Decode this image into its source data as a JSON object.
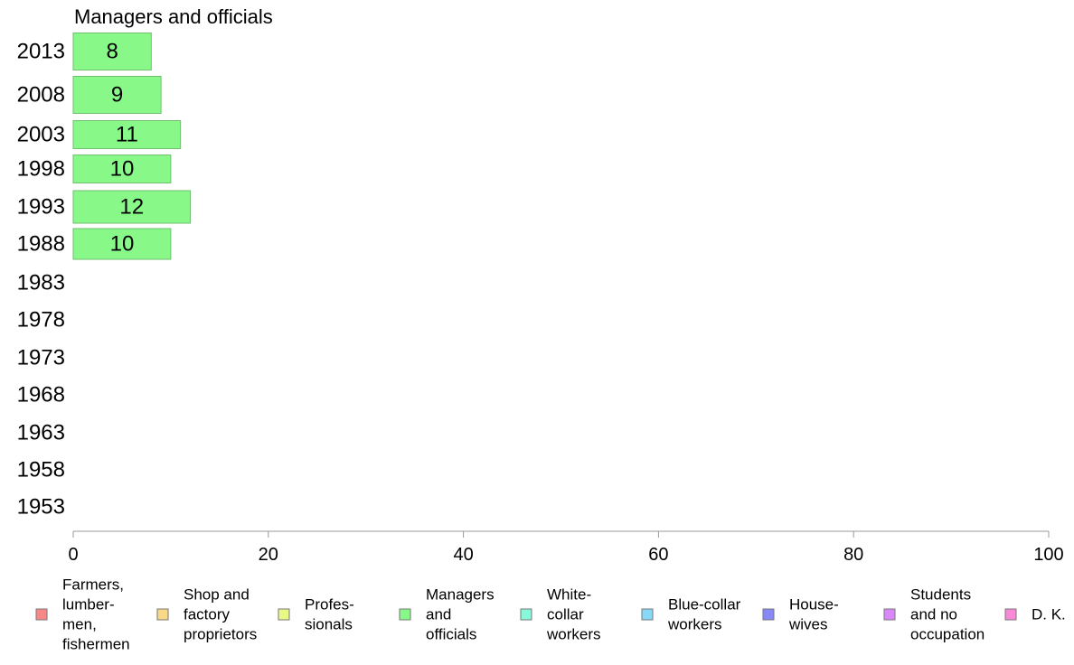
{
  "chart_data": {
    "type": "bar",
    "orientation": "horizontal",
    "title": "Managers and officials",
    "categories": [
      "2013",
      "2008",
      "2003",
      "1998",
      "1993",
      "1988",
      "1983",
      "1978",
      "1973",
      "1968",
      "1963",
      "1958",
      "1953"
    ],
    "series": [
      {
        "name": "Managers and officials",
        "values": [
          8,
          9,
          11,
          10,
          12,
          10,
          null,
          null,
          null,
          null,
          null,
          null,
          null
        ],
        "labels": [
          "8",
          "9",
          "11",
          "10",
          "12",
          "10",
          "",
          "",
          "",
          "",
          "",
          "",
          ""
        ],
        "color": "#88f988"
      }
    ],
    "xlim": [
      0,
      100
    ],
    "xticks": [
      "0",
      "20",
      "40",
      "60",
      "80",
      "100"
    ],
    "grid": false,
    "legend_position": "bottom",
    "legend": [
      {
        "lines": [
          "Farmers,",
          "lumber-",
          "men,",
          "fishermen"
        ],
        "color": "#f88888"
      },
      {
        "lines": [
          "Shop and",
          "factory",
          "proprietors"
        ],
        "color": "#f9d888"
      },
      {
        "lines": [
          "Profes-",
          "sionals"
        ],
        "color": "#e8f988"
      },
      {
        "lines": [
          "Managers",
          "and",
          "officials"
        ],
        "color": "#88f988"
      },
      {
        "lines": [
          "White-",
          "collar",
          "workers"
        ],
        "color": "#88f9d8"
      },
      {
        "lines": [
          "Blue-collar",
          "workers"
        ],
        "color": "#88d8f9"
      },
      {
        "lines": [
          "House-",
          "wives"
        ],
        "color": "#8888f9"
      },
      {
        "lines": [
          "Students",
          "and no",
          "occupation"
        ],
        "color": "#d888f9"
      },
      {
        "lines": [
          "D. K."
        ],
        "color": "#f988d8"
      }
    ]
  }
}
